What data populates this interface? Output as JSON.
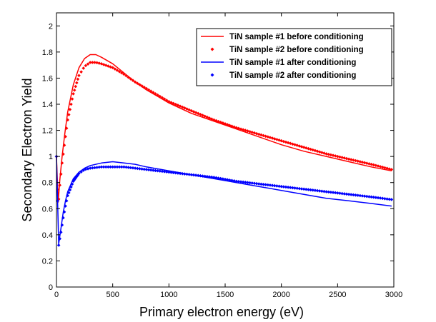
{
  "chart_data": {
    "type": "line",
    "title": "",
    "xlabel": "Primary electron energy (eV)",
    "ylabel": "Secondary Electron Yield",
    "xlim": [
      0,
      3000
    ],
    "ylim": [
      0,
      2.1
    ],
    "xticks": [
      0,
      500,
      1000,
      1500,
      2000,
      2500,
      3000
    ],
    "yticks": [
      0,
      0.2,
      0.4,
      0.6,
      0.8,
      1,
      1.2,
      1.4,
      1.6,
      1.8,
      2
    ],
    "grid": false,
    "legend_position": "top-right",
    "colors": {
      "red": "#ff0000",
      "blue": "#0000ff"
    },
    "series": [
      {
        "name": "TiN sample #1 before conditioning",
        "style": "line",
        "color": "#ff0000",
        "points": [
          [
            0,
            1.0
          ],
          [
            15,
            0.65
          ],
          [
            30,
            0.82
          ],
          [
            50,
            1.0
          ],
          [
            75,
            1.18
          ],
          [
            100,
            1.34
          ],
          [
            150,
            1.55
          ],
          [
            200,
            1.68
          ],
          [
            250,
            1.75
          ],
          [
            300,
            1.78
          ],
          [
            350,
            1.78
          ],
          [
            400,
            1.76
          ],
          [
            500,
            1.71
          ],
          [
            600,
            1.64
          ],
          [
            700,
            1.57
          ],
          [
            800,
            1.51
          ],
          [
            900,
            1.46
          ],
          [
            1000,
            1.41
          ],
          [
            1200,
            1.33
          ],
          [
            1400,
            1.27
          ],
          [
            1600,
            1.21
          ],
          [
            1800,
            1.15
          ],
          [
            2000,
            1.09
          ],
          [
            2200,
            1.04
          ],
          [
            2400,
            1.0
          ],
          [
            2600,
            0.96
          ],
          [
            2800,
            0.92
          ],
          [
            2980,
            0.89
          ]
        ]
      },
      {
        "name": "TiN sample #2 before conditioning",
        "style": "marker",
        "color": "#ff0000",
        "points": [
          [
            0,
            1.0
          ],
          [
            15,
            0.62
          ],
          [
            30,
            0.78
          ],
          [
            50,
            0.95
          ],
          [
            75,
            1.12
          ],
          [
            100,
            1.28
          ],
          [
            150,
            1.48
          ],
          [
            200,
            1.62
          ],
          [
            250,
            1.69
          ],
          [
            300,
            1.72
          ],
          [
            350,
            1.72
          ],
          [
            400,
            1.71
          ],
          [
            500,
            1.68
          ],
          [
            600,
            1.63
          ],
          [
            700,
            1.57
          ],
          [
            800,
            1.52
          ],
          [
            900,
            1.47
          ],
          [
            1000,
            1.42
          ],
          [
            1200,
            1.35
          ],
          [
            1400,
            1.28
          ],
          [
            1600,
            1.22
          ],
          [
            1800,
            1.17
          ],
          [
            2000,
            1.12
          ],
          [
            2200,
            1.07
          ],
          [
            2400,
            1.02
          ],
          [
            2600,
            0.98
          ],
          [
            2800,
            0.94
          ],
          [
            2980,
            0.9
          ]
        ]
      },
      {
        "name": "TiN sample #1 after conditioning",
        "style": "line",
        "color": "#0000ff",
        "points": [
          [
            0,
            1.0
          ],
          [
            20,
            0.33
          ],
          [
            40,
            0.45
          ],
          [
            60,
            0.57
          ],
          [
            80,
            0.66
          ],
          [
            100,
            0.73
          ],
          [
            150,
            0.83
          ],
          [
            200,
            0.88
          ],
          [
            250,
            0.91
          ],
          [
            300,
            0.93
          ],
          [
            400,
            0.95
          ],
          [
            500,
            0.96
          ],
          [
            600,
            0.95
          ],
          [
            700,
            0.94
          ],
          [
            800,
            0.92
          ],
          [
            1000,
            0.89
          ],
          [
            1200,
            0.86
          ],
          [
            1400,
            0.83
          ],
          [
            1600,
            0.8
          ],
          [
            1800,
            0.77
          ],
          [
            2000,
            0.74
          ],
          [
            2200,
            0.71
          ],
          [
            2400,
            0.68
          ],
          [
            2600,
            0.66
          ],
          [
            2800,
            0.64
          ],
          [
            2980,
            0.62
          ]
        ]
      },
      {
        "name": "TiN sample #2 after conditioning",
        "style": "marker",
        "color": "#0000ff",
        "points": [
          [
            0,
            1.0
          ],
          [
            20,
            0.32
          ],
          [
            40,
            0.42
          ],
          [
            60,
            0.53
          ],
          [
            80,
            0.62
          ],
          [
            100,
            0.7
          ],
          [
            150,
            0.81
          ],
          [
            200,
            0.87
          ],
          [
            250,
            0.9
          ],
          [
            300,
            0.91
          ],
          [
            400,
            0.92
          ],
          [
            500,
            0.92
          ],
          [
            600,
            0.92
          ],
          [
            700,
            0.91
          ],
          [
            800,
            0.9
          ],
          [
            1000,
            0.88
          ],
          [
            1200,
            0.86
          ],
          [
            1400,
            0.84
          ],
          [
            1600,
            0.81
          ],
          [
            1800,
            0.79
          ],
          [
            2000,
            0.77
          ],
          [
            2200,
            0.75
          ],
          [
            2400,
            0.73
          ],
          [
            2600,
            0.71
          ],
          [
            2800,
            0.69
          ],
          [
            2980,
            0.67
          ]
        ]
      }
    ]
  }
}
